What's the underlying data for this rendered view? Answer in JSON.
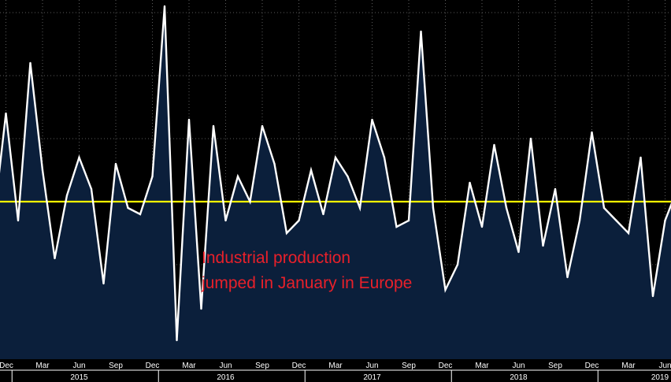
{
  "chart_data": {
    "type": "area",
    "title": "",
    "xlabel": "",
    "ylabel": "",
    "x": [
      "Nov 2014",
      "Dec 2014",
      "Jan 2015",
      "Feb 2015",
      "Mar 2015",
      "Apr 2015",
      "May 2015",
      "Jun 2015",
      "Jul 2015",
      "Aug 2015",
      "Sep 2015",
      "Oct 2015",
      "Nov 2015",
      "Dec 2015",
      "Jan 2016",
      "Feb 2016",
      "Mar 2016",
      "Apr 2016",
      "May 2016",
      "Jun 2016",
      "Jul 2016",
      "Aug 2016",
      "Sep 2016",
      "Oct 2016",
      "Nov 2016",
      "Dec 2016",
      "Jan 2017",
      "Feb 2017",
      "Mar 2017",
      "Apr 2017",
      "May 2017",
      "Jun 2017",
      "Jul 2017",
      "Aug 2017",
      "Sep 2017",
      "Oct 2017",
      "Nov 2017",
      "Dec 2017",
      "Jan 2018",
      "Feb 2018",
      "Mar 2018",
      "Apr 2018",
      "May 2018",
      "Jun 2018",
      "Jul 2018",
      "Aug 2018",
      "Sep 2018",
      "Oct 2018",
      "Nov 2018",
      "Dec 2018",
      "Jan 2019",
      "Feb 2019",
      "Mar 2019",
      "Apr 2019",
      "May 2019",
      "Jun 2019",
      "Jul 2019",
      "Aug 2019"
    ],
    "series": [
      {
        "color": "#ffffff",
        "values": [
          -0.3,
          1.4,
          -0.3,
          2.2,
          0.5,
          -0.9,
          0.1,
          0.7,
          0.2,
          -1.3,
          0.6,
          -0.1,
          -0.2,
          0.4,
          3.1,
          -2.2,
          1.3,
          -1.7,
          1.2,
          -0.3,
          0.4,
          0.0,
          1.2,
          0.6,
          -0.5,
          -0.3,
          0.5,
          -0.2,
          0.7,
          0.4,
          -0.1,
          1.3,
          0.7,
          -0.4,
          -0.3,
          2.7,
          -0.1,
          -1.4,
          -1.0,
          0.3,
          -0.4,
          0.9,
          -0.1,
          -0.8,
          1.0,
          -0.7,
          0.2,
          -1.2,
          -0.3,
          1.1,
          -0.1,
          -0.3,
          -0.5,
          0.7,
          -1.5,
          -0.3,
          0.2,
          0.6
        ]
      }
    ],
    "reference_line": {
      "value": 0.0,
      "color": "#ffff00"
    },
    "ylim": [
      -2.5,
      3.2
    ],
    "y_gridlines": [
      -2.0,
      -1.0,
      0.0,
      1.0,
      2.0,
      3.0
    ],
    "x_ticks": [
      {
        "label": "Dec",
        "x": "Dec 2014"
      },
      {
        "label": "Mar",
        "x": "Mar 2015"
      },
      {
        "label": "Jun",
        "x": "Jun 2015"
      },
      {
        "label": "Sep",
        "x": "Sep 2015"
      },
      {
        "label": "Dec",
        "x": "Dec 2015"
      },
      {
        "label": "Mar",
        "x": "Mar 2016"
      },
      {
        "label": "Jun",
        "x": "Jun 2016"
      },
      {
        "label": "Sep",
        "x": "Sep 2016"
      },
      {
        "label": "Dec",
        "x": "Dec 2016"
      },
      {
        "label": "Mar",
        "x": "Mar 2017"
      },
      {
        "label": "Jun",
        "x": "Jun 2017"
      },
      {
        "label": "Sep",
        "x": "Sep 2017"
      },
      {
        "label": "Dec",
        "x": "Dec 2017"
      },
      {
        "label": "Mar",
        "x": "Mar 2018"
      },
      {
        "label": "Jun",
        "x": "Jun 2018"
      },
      {
        "label": "Sep",
        "x": "Sep 2018"
      },
      {
        "label": "Dec",
        "x": "Dec 2018"
      },
      {
        "label": "Mar",
        "x": "Mar 2019"
      },
      {
        "label": "Jun",
        "x": "Jun 2019"
      }
    ],
    "x_year_labels": [
      "2015",
      "2016",
      "2017",
      "2018",
      "2019"
    ],
    "grid": true,
    "annotation": {
      "lines": [
        "Industrial production",
        "jumped in January in Europe"
      ],
      "color": "#e8202a"
    },
    "colors": {
      "background": "#000000",
      "area_fill": "#0b1f3b",
      "line": "#ffffff"
    }
  }
}
